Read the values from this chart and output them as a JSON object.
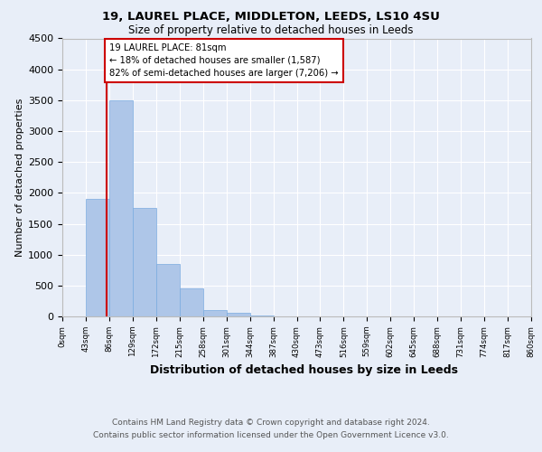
{
  "title1": "19, LAUREL PLACE, MIDDLETON, LEEDS, LS10 4SU",
  "title2": "Size of property relative to detached houses in Leeds",
  "xlabel": "Distribution of detached houses by size in Leeds",
  "ylabel": "Number of detached properties",
  "bin_labels": [
    "0sqm",
    "43sqm",
    "86sqm",
    "129sqm",
    "172sqm",
    "215sqm",
    "258sqm",
    "301sqm",
    "344sqm",
    "387sqm",
    "430sqm",
    "473sqm",
    "516sqm",
    "559sqm",
    "602sqm",
    "645sqm",
    "688sqm",
    "731sqm",
    "774sqm",
    "817sqm",
    "860sqm"
  ],
  "bar_heights": [
    5,
    1900,
    3500,
    1760,
    850,
    450,
    100,
    55,
    10,
    5,
    2,
    0,
    0,
    0,
    0,
    0,
    0,
    0,
    0,
    0
  ],
  "bar_color": "#aec6e8",
  "bar_edge_color": "#7aabe0",
  "property_size": 81,
  "property_label": "19 LAUREL PLACE: 81sqm",
  "annotation_line1": "← 18% of detached houses are smaller (1,587)",
  "annotation_line2": "82% of semi-detached houses are larger (7,206) →",
  "vline_color": "#cc0000",
  "annotation_box_color": "#cc0000",
  "ylim": [
    0,
    4500
  ],
  "yticks": [
    0,
    500,
    1000,
    1500,
    2000,
    2500,
    3000,
    3500,
    4000,
    4500
  ],
  "bg_color": "#e8eef8",
  "plot_bg_color": "#e8eef8",
  "footer1": "Contains HM Land Registry data © Crown copyright and database right 2024.",
  "footer2": "Contains public sector information licensed under the Open Government Licence v3.0."
}
